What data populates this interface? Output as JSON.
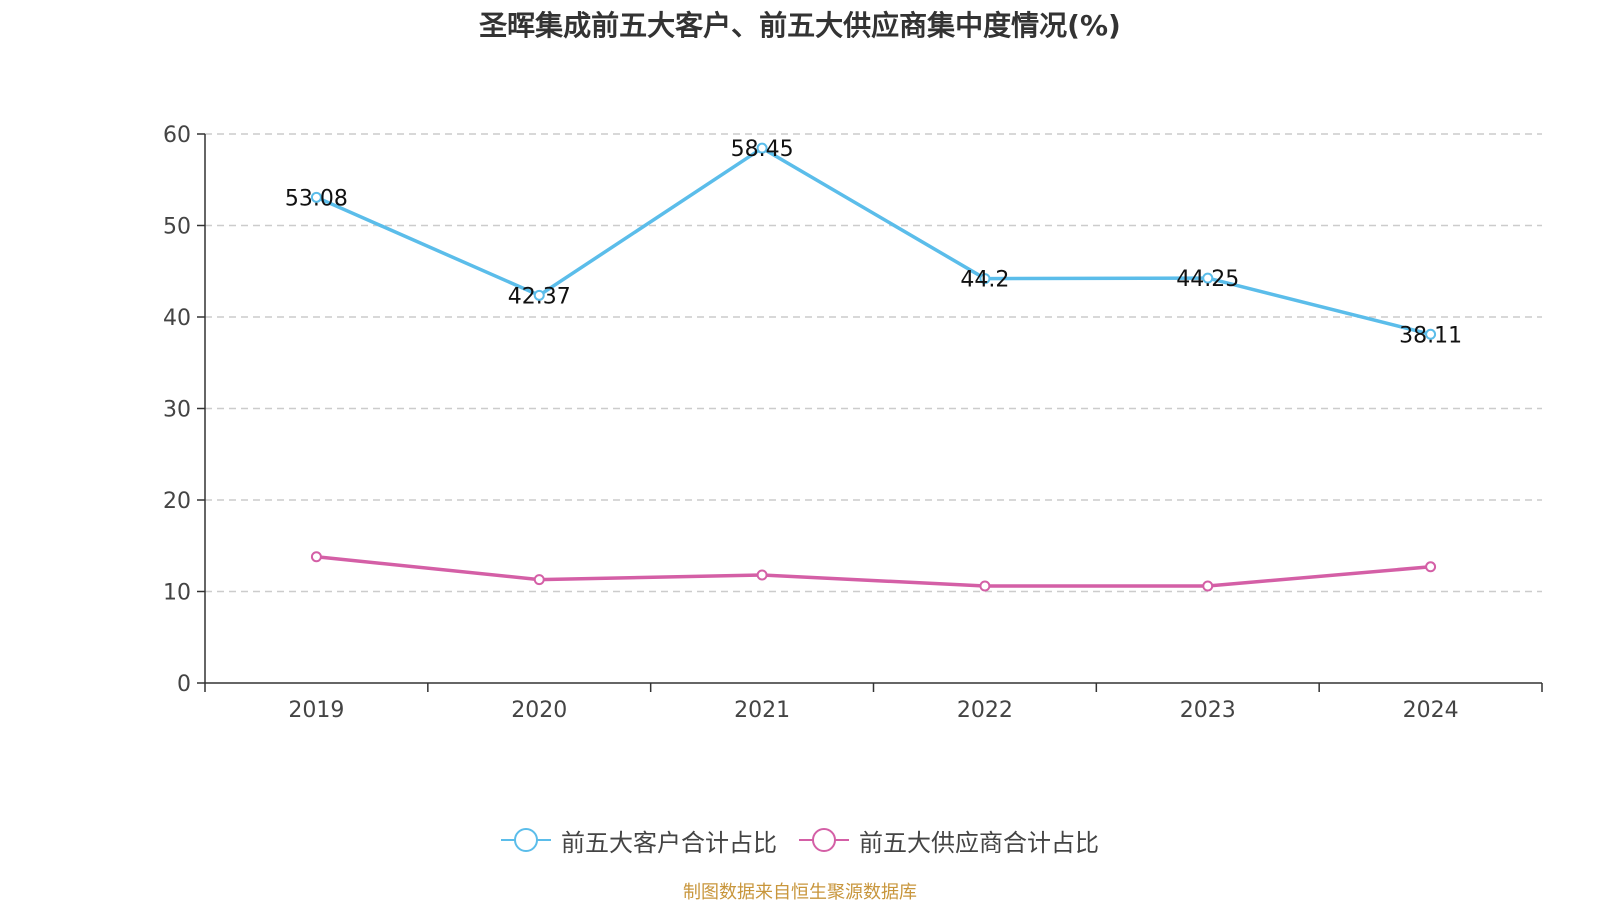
{
  "title": "圣晖集成前五大客户、前五大供应商集中度情况(%)",
  "source": "制图数据来自恒生聚源数据库",
  "chart_data": {
    "type": "line",
    "categories": [
      "2019",
      "2020",
      "2021",
      "2022",
      "2023",
      "2024"
    ],
    "ylim": [
      0,
      60
    ],
    "yticks": [
      0,
      10,
      20,
      30,
      40,
      50,
      60
    ],
    "grid": true,
    "legend_position": "bottom",
    "series": [
      {
        "name": "前五大客户合计占比",
        "color": "#5bbdea",
        "values": [
          53.08,
          42.37,
          58.45,
          44.2,
          44.25,
          38.11
        ],
        "labels": [
          "53.08",
          "42.37",
          "58.45",
          "44.2",
          "44.25",
          "38.11"
        ]
      },
      {
        "name": "前五大供应商合计占比",
        "color": "#d45fa6",
        "values": [
          13.8,
          11.3,
          11.8,
          10.6,
          10.6,
          12.7
        ],
        "labels": []
      }
    ]
  }
}
